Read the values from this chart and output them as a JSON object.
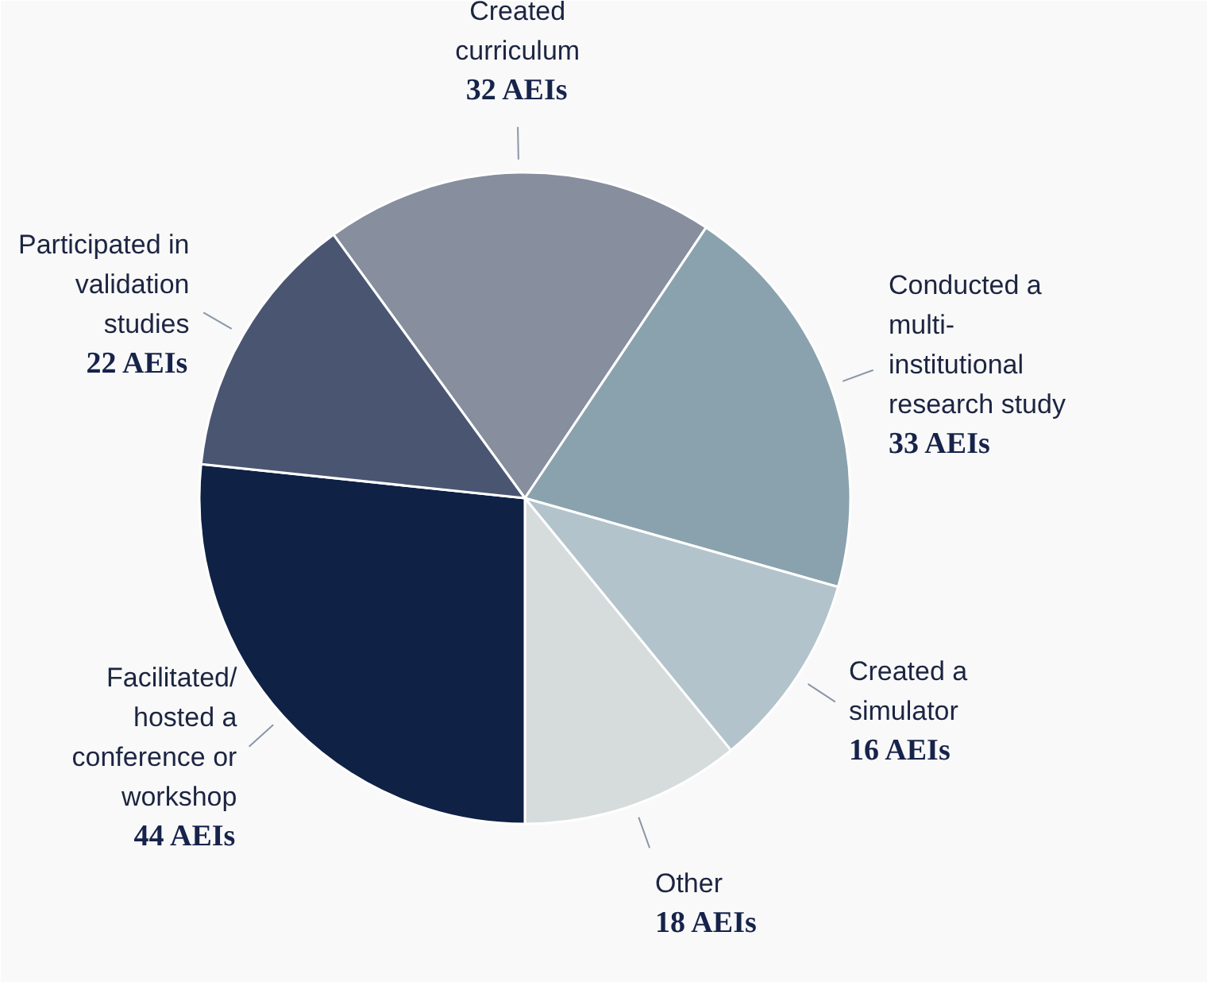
{
  "chart_data": {
    "type": "pie",
    "categories": [
      "Created curriculum",
      "Conducted a multi-institutional research study",
      "Created a simulator",
      "Other",
      "Facilitated/ hosted a conference or workshop",
      "Participated in validation studies"
    ],
    "values": [
      32,
      33,
      16,
      18,
      44,
      22
    ],
    "colors": [
      "#878e9e",
      "#8aa2ae",
      "#b2c3cb",
      "#d6dcdc",
      "#0f2145",
      "#4a5671"
    ],
    "value_labels": [
      "32 AEIs",
      "33 AEIs",
      "16 AEIs",
      "18 AEIs",
      "44 AEIs",
      "22 AEIs"
    ]
  }
}
